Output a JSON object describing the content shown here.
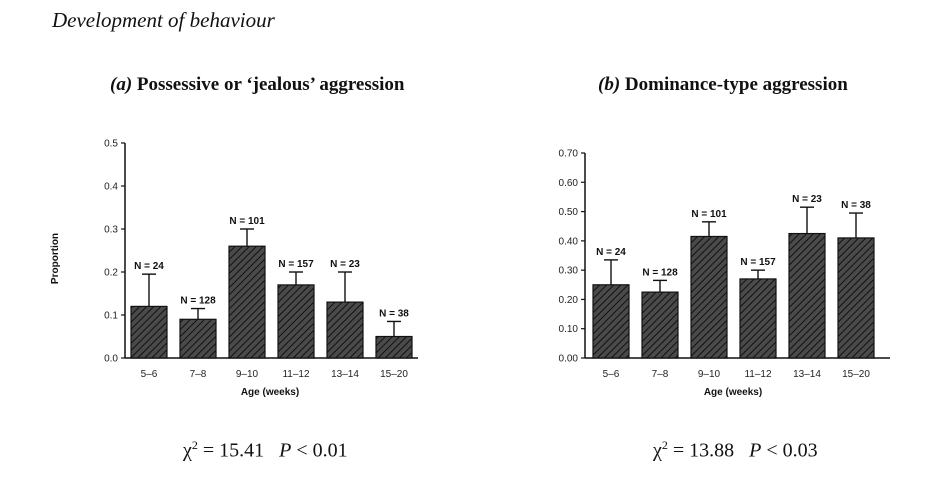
{
  "page": {
    "header": "Development of behaviour",
    "colors": {
      "bar_fill": "#4a4a4a",
      "hatch": "#111111",
      "axis": "#111111"
    }
  },
  "chart_data": [
    {
      "type": "bar",
      "panel_letter": "(a)",
      "title": "Possessive or ‘jealous’ aggression",
      "xlabel": "Age (weeks)",
      "ylabel": "Proportion",
      "categories": [
        "5–6",
        "7–8",
        "9–10",
        "11–12",
        "13–14",
        "15–20"
      ],
      "values": [
        0.12,
        0.09,
        0.26,
        0.17,
        0.13,
        0.05
      ],
      "error_upper": [
        0.195,
        0.115,
        0.3,
        0.2,
        0.2,
        0.085
      ],
      "n_labels": [
        "N = 24",
        "N = 128",
        "N = 101",
        "N = 157",
        "N = 23",
        "N = 38"
      ],
      "yticks": [
        "0.0",
        "0.1",
        "0.2",
        "0.3",
        "0.4",
        "0.5"
      ],
      "ylim": [
        0,
        0.5
      ],
      "statistic": {
        "chi_symbol": "χ",
        "exponent": "2",
        "chi_value": "= 15.41",
        "p_letter": "P",
        "p_value": "< 0.01"
      }
    },
    {
      "type": "bar",
      "panel_letter": "(b)",
      "title": "Dominance-type aggression",
      "xlabel": "Age (weeks)",
      "ylabel": "",
      "categories": [
        "5–6",
        "7–8",
        "9–10",
        "11–12",
        "13–14",
        "15–20"
      ],
      "values": [
        0.25,
        0.225,
        0.415,
        0.27,
        0.425,
        0.41
      ],
      "error_upper": [
        0.335,
        0.265,
        0.465,
        0.3,
        0.515,
        0.495
      ],
      "n_labels": [
        "N = 24",
        "N = 128",
        "N = 101",
        "N = 157",
        "N = 23",
        "N = 38"
      ],
      "yticks": [
        "0.00",
        "0.10",
        "0.20",
        "0.30",
        "0.40",
        "0.50",
        "0.60",
        "0.70"
      ],
      "ylim": [
        0,
        0.7
      ],
      "statistic": {
        "chi_symbol": "χ",
        "exponent": "2",
        "chi_value": "= 13.88",
        "p_letter": "P",
        "p_value": "< 0.03"
      }
    }
  ]
}
